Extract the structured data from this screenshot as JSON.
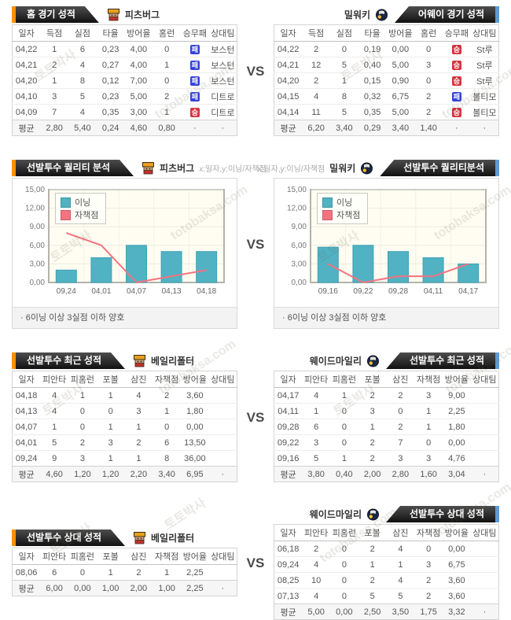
{
  "page": {
    "vs_label": "VS"
  },
  "watermark": {
    "line1": "토토박사",
    "line2": "totobaksa.com"
  },
  "colors": {
    "tab_accent_left": "#ff9000",
    "tab_accent_right": "#5b9bd5",
    "win_badge": "#d7333f",
    "loss_badge": "#3544d8",
    "bar_series": "#51b2c3",
    "line_series": "#f4737f",
    "plot_bg": "#fffdf2"
  },
  "sections": [
    {
      "kind": "table",
      "left": {
        "tab": "홈 경기 성적",
        "team": "피츠버그",
        "logo": "pittsburgh-logo",
        "headers": [
          "일자",
          "득점",
          "실점",
          "타율",
          "방어율",
          "홈런",
          "승무패",
          "상대팀"
        ],
        "rows": [
          [
            "04,22",
            "1",
            "6",
            "0,23",
            "4,00",
            "0",
            "패",
            "보스턴"
          ],
          [
            "04,21",
            "2",
            "4",
            "0,27",
            "4,00",
            "1",
            "패",
            "보스턴"
          ],
          [
            "04,20",
            "1",
            "8",
            "0,12",
            "7,00",
            "0",
            "패",
            "보스턴"
          ],
          [
            "04,10",
            "3",
            "5",
            "0,23",
            "5,00",
            "2",
            "패",
            "디트로"
          ],
          [
            "04,09",
            "7",
            "4",
            "0,35",
            "3,00",
            "1",
            "승",
            "디트로"
          ]
        ],
        "avg": [
          "평균",
          "2,80",
          "5,40",
          "0,24",
          "4,60",
          "0,80",
          "·",
          "·"
        ]
      },
      "right": {
        "tab": "어웨이 경기 성적",
        "team": "밀워키",
        "logo": "milwaukee-logo",
        "headers": [
          "일자",
          "득점",
          "실점",
          "타율",
          "방어율",
          "홈런",
          "승무패",
          "상대팀"
        ],
        "rows": [
          [
            "04,22",
            "2",
            "0",
            "0,19",
            "0,00",
            "0",
            "승",
            "St루"
          ],
          [
            "04,21",
            "12",
            "5",
            "0,40",
            "5,00",
            "3",
            "승",
            "St루"
          ],
          [
            "04,20",
            "2",
            "1",
            "0,15",
            "0,90",
            "0",
            "승",
            "St루"
          ],
          [
            "04,15",
            "4",
            "8",
            "0,32",
            "6,75",
            "2",
            "패",
            "볼티모"
          ],
          [
            "04,14",
            "11",
            "5",
            "0,35",
            "5,00",
            "2",
            "승",
            "볼티모"
          ]
        ],
        "avg": [
          "평균",
          "6,20",
          "3,40",
          "0,29",
          "3,40",
          "1,40",
          "·",
          "·"
        ]
      }
    },
    {
      "kind": "chart",
      "left": {
        "tab": "선발투수 퀄리티 분석",
        "team": "피츠버그",
        "logo": "pittsburgh-logo",
        "note": "x:일자,y:이닝/자책점",
        "chart": 0
      },
      "right": {
        "tab": "선발투수 퀄리티분석",
        "team": "밀워키",
        "logo": "milwaukee-logo",
        "note": "x:일자,y:이닝/자책점",
        "chart": 1
      }
    },
    {
      "kind": "table",
      "left": {
        "tab": "선발투수 최근 성적",
        "team": "베일리폴터",
        "logo": "pittsburgh-logo",
        "headers": [
          "일자",
          "피안타",
          "피홈런",
          "포볼",
          "삼진",
          "자책점",
          "방어율",
          "상대팀"
        ],
        "rows": [
          [
            "04,18",
            "4",
            "1",
            "1",
            "4",
            "2",
            "3,60",
            ""
          ],
          [
            "04,13",
            "4",
            "0",
            "0",
            "3",
            "1",
            "1,80",
            ""
          ],
          [
            "04,07",
            "1",
            "0",
            "1",
            "1",
            "0",
            "0,00",
            ""
          ],
          [
            "04,01",
            "5",
            "2",
            "3",
            "2",
            "6",
            "13,50",
            ""
          ],
          [
            "09,24",
            "9",
            "3",
            "1",
            "1",
            "8",
            "36,00",
            ""
          ]
        ],
        "avg": [
          "평균",
          "4,60",
          "1,20",
          "1,20",
          "2,20",
          "3,40",
          "6,95",
          "·"
        ]
      },
      "right": {
        "tab": "선발투수 최근 성적",
        "team": "웨이드마일리",
        "logo": "milwaukee-logo",
        "headers": [
          "일자",
          "피안타",
          "피홈런",
          "포볼",
          "삼진",
          "자책점",
          "방어율",
          "상대팀"
        ],
        "rows": [
          [
            "04,17",
            "4",
            "1",
            "2",
            "2",
            "3",
            "9,00",
            ""
          ],
          [
            "04,11",
            "1",
            "0",
            "3",
            "0",
            "1",
            "2,25",
            ""
          ],
          [
            "09,28",
            "6",
            "0",
            "1",
            "2",
            "1",
            "1,80",
            ""
          ],
          [
            "09,22",
            "3",
            "0",
            "2",
            "7",
            "0",
            "0,00",
            ""
          ],
          [
            "09,16",
            "5",
            "1",
            "2",
            "3",
            "3",
            "4,76",
            ""
          ]
        ],
        "avg": [
          "평균",
          "3,80",
          "0,40",
          "2,00",
          "2,80",
          "1,60",
          "3,04",
          "·"
        ]
      }
    },
    {
      "kind": "table",
      "left": {
        "tab": "선발투수 상대 성적",
        "team": "베일리폴터",
        "logo": "pittsburgh-logo",
        "headers": [
          "일자",
          "피안타",
          "피홈런",
          "포볼",
          "삼진",
          "자책점",
          "방어율",
          "상대팀"
        ],
        "rows": [
          [
            "08,06",
            "6",
            "0",
            "1",
            "2",
            "1",
            "2,25",
            ""
          ]
        ],
        "avg": [
          "평균",
          "6,00",
          "0,00",
          "1,00",
          "2,00",
          "1,00",
          "2,25",
          "·"
        ]
      },
      "right": {
        "tab": "선발투수 상대 성적",
        "team": "웨이드마일리",
        "logo": "milwaukee-logo",
        "headers": [
          "일자",
          "피안타",
          "피홈런",
          "포볼",
          "삼진",
          "자책점",
          "방어율",
          "상대팀"
        ],
        "rows": [
          [
            "06,18",
            "2",
            "0",
            "2",
            "4",
            "0",
            "0,00",
            ""
          ],
          [
            "09,24",
            "4",
            "0",
            "1",
            "1",
            "3",
            "6,75",
            ""
          ],
          [
            "08,25",
            "10",
            "0",
            "2",
            "4",
            "2",
            "3,60",
            ""
          ],
          [
            "07,13",
            "4",
            "0",
            "5",
            "5",
            "2",
            "3,60",
            ""
          ]
        ],
        "avg": [
          "평균",
          "5,00",
          "0,00",
          "2,50",
          "3,50",
          "1,75",
          "3,32",
          "·"
        ]
      }
    }
  ],
  "chart_data": [
    {
      "type": "bar",
      "title": "선발투수 퀄리티 분석 — 피츠버그",
      "axis_note": "x:일자,y:이닝/자책점",
      "categories": [
        "09,24",
        "04,01",
        "04,07",
        "04,13",
        "04,18"
      ],
      "series": [
        {
          "name": "이닝",
          "type": "bar",
          "color": "#51b2c3",
          "values": [
            2,
            4,
            6,
            5,
            5
          ]
        },
        {
          "name": "자책점",
          "type": "line",
          "color": "#f4737f",
          "values": [
            8,
            6,
            0,
            1,
            2
          ]
        }
      ],
      "ylim": [
        0,
        15
      ],
      "y_ticks": [
        "0,00",
        "3,00",
        "6,00",
        "9,00",
        "12,00",
        "15,00"
      ],
      "grid": true,
      "legend_position": "top-left",
      "note": "· 6이닝 이상 3실점 이하 양호"
    },
    {
      "type": "bar",
      "title": "선발투수 퀄리티분석 — 밀워키",
      "axis_note": "x:일자,y:이닝/자책점",
      "categories": [
        "09,16",
        "09,22",
        "09,28",
        "04,11",
        "04,17"
      ],
      "series": [
        {
          "name": "이닝",
          "type": "bar",
          "color": "#51b2c3",
          "values": [
            5.7,
            6,
            5,
            4,
            3
          ]
        },
        {
          "name": "자책점",
          "type": "line",
          "color": "#f4737f",
          "values": [
            3,
            0,
            1,
            1,
            3
          ]
        }
      ],
      "ylim": [
        0,
        15
      ],
      "y_ticks": [
        "0,00",
        "3,00",
        "6,00",
        "9,00",
        "12,00",
        "15,00"
      ],
      "grid": true,
      "legend_position": "top-left",
      "note": "· 6이닝 이상 3실점 이하 양호"
    }
  ]
}
